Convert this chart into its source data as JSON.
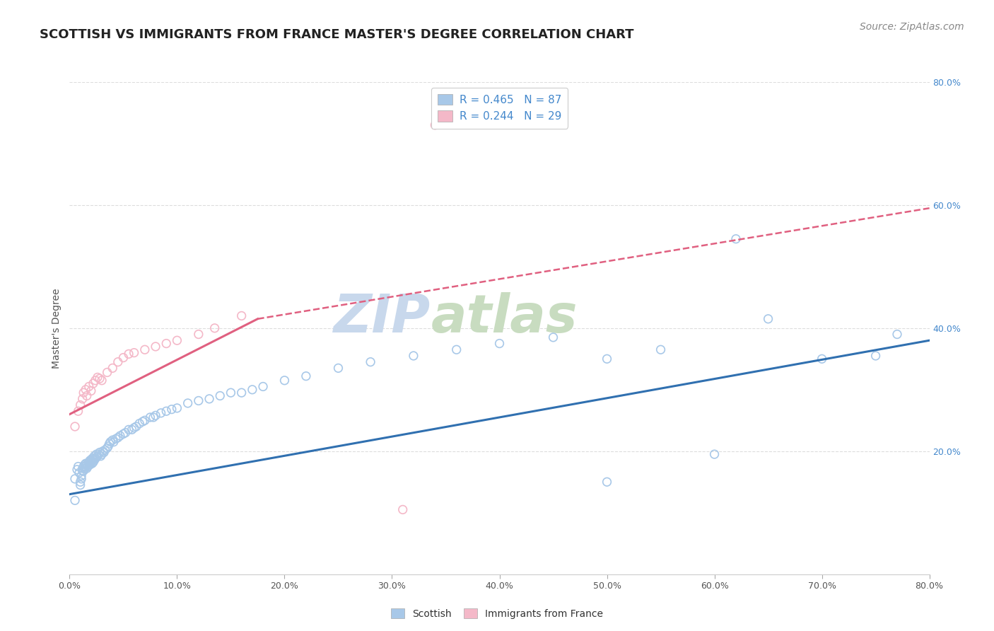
{
  "title": "SCOTTISH VS IMMIGRANTS FROM FRANCE MASTER'S DEGREE CORRELATION CHART",
  "source": "Source: ZipAtlas.com",
  "ylabel": "Master's Degree",
  "xlim": [
    0.0,
    0.8
  ],
  "ylim": [
    0.0,
    0.8
  ],
  "ytick_labels_right": [
    "80.0%",
    "60.0%",
    "40.0%",
    "20.0%"
  ],
  "ytick_positions_right": [
    0.8,
    0.6,
    0.4,
    0.2
  ],
  "watermark_part1": "ZIP",
  "watermark_part2": "atlas",
  "legend_entries": [
    {
      "label": "R = 0.465   N = 87",
      "color": "#a8c8e8"
    },
    {
      "label": "R = 0.244   N = 29",
      "color": "#f4b8c8"
    }
  ],
  "scatter_blue": {
    "color": "#a8c8e8",
    "x": [
      0.005,
      0.005,
      0.007,
      0.008,
      0.009,
      0.01,
      0.01,
      0.011,
      0.011,
      0.012,
      0.012,
      0.013,
      0.013,
      0.014,
      0.014,
      0.015,
      0.015,
      0.016,
      0.016,
      0.017,
      0.018,
      0.018,
      0.019,
      0.019,
      0.02,
      0.02,
      0.021,
      0.021,
      0.022,
      0.022,
      0.023,
      0.023,
      0.024,
      0.025,
      0.025,
      0.026,
      0.027,
      0.028,
      0.029,
      0.03,
      0.031,
      0.032,
      0.033,
      0.035,
      0.036,
      0.037,
      0.038,
      0.04,
      0.041,
      0.043,
      0.045,
      0.047,
      0.05,
      0.052,
      0.055,
      0.058,
      0.06,
      0.062,
      0.065,
      0.068,
      0.07,
      0.075,
      0.078,
      0.08,
      0.085,
      0.09,
      0.095,
      0.1,
      0.11,
      0.12,
      0.13,
      0.14,
      0.15,
      0.16,
      0.17,
      0.18,
      0.2,
      0.22,
      0.25,
      0.28,
      0.32,
      0.36,
      0.4,
      0.45,
      0.5,
      0.55,
      0.65
    ],
    "y": [
      0.12,
      0.155,
      0.17,
      0.175,
      0.165,
      0.15,
      0.145,
      0.16,
      0.155,
      0.168,
      0.172,
      0.175,
      0.168,
      0.172,
      0.178,
      0.175,
      0.18,
      0.172,
      0.178,
      0.175,
      0.178,
      0.182,
      0.178,
      0.185,
      0.182,
      0.185,
      0.18,
      0.188,
      0.182,
      0.188,
      0.185,
      0.192,
      0.188,
      0.19,
      0.195,
      0.192,
      0.195,
      0.198,
      0.192,
      0.195,
      0.2,
      0.198,
      0.202,
      0.205,
      0.208,
      0.212,
      0.215,
      0.218,
      0.215,
      0.22,
      0.222,
      0.225,
      0.228,
      0.23,
      0.235,
      0.235,
      0.238,
      0.24,
      0.245,
      0.248,
      0.25,
      0.255,
      0.255,
      0.258,
      0.262,
      0.265,
      0.268,
      0.27,
      0.278,
      0.282,
      0.285,
      0.29,
      0.295,
      0.295,
      0.3,
      0.305,
      0.315,
      0.322,
      0.335,
      0.345,
      0.355,
      0.365,
      0.375,
      0.385,
      0.35,
      0.365,
      0.415
    ]
  },
  "scatter_blue_high": {
    "color": "#a8c8e8",
    "x": [
      0.5,
      0.6,
      0.62,
      0.7,
      0.75,
      0.77
    ],
    "y": [
      0.15,
      0.195,
      0.545,
      0.35,
      0.355,
      0.39
    ]
  },
  "scatter_pink": {
    "color": "#f4b8c8",
    "x": [
      0.005,
      0.008,
      0.01,
      0.012,
      0.013,
      0.015,
      0.016,
      0.018,
      0.02,
      0.022,
      0.024,
      0.026,
      0.028,
      0.03,
      0.035,
      0.04,
      0.045,
      0.05,
      0.055,
      0.06,
      0.07,
      0.08,
      0.09,
      0.1,
      0.12,
      0.135,
      0.16,
      0.31,
      0.34
    ],
    "y": [
      0.24,
      0.265,
      0.275,
      0.285,
      0.295,
      0.3,
      0.29,
      0.305,
      0.298,
      0.31,
      0.315,
      0.32,
      0.318,
      0.315,
      0.328,
      0.335,
      0.345,
      0.352,
      0.358,
      0.36,
      0.365,
      0.37,
      0.375,
      0.38,
      0.39,
      0.4,
      0.42,
      0.105,
      0.73
    ]
  },
  "trend_blue": {
    "x": [
      0.0,
      0.8
    ],
    "y": [
      0.13,
      0.38
    ],
    "color": "#3070b0",
    "linewidth": 2.2
  },
  "trend_pink_solid": {
    "x": [
      0.0,
      0.175
    ],
    "y": [
      0.26,
      0.415
    ],
    "color": "#e06080",
    "linewidth": 2.2
  },
  "trend_pink_dashed": {
    "x": [
      0.175,
      0.8
    ],
    "y": [
      0.415,
      0.595
    ],
    "color": "#e06080",
    "linewidth": 1.8
  },
  "background_color": "#ffffff",
  "grid_color": "#dddddd",
  "title_color": "#222222",
  "title_fontsize": 13,
  "watermark_color_zip": "#c8d8ec",
  "watermark_color_atlas": "#c8dcc0",
  "watermark_fontsize": 54,
  "source_fontsize": 10,
  "source_color": "#888888"
}
